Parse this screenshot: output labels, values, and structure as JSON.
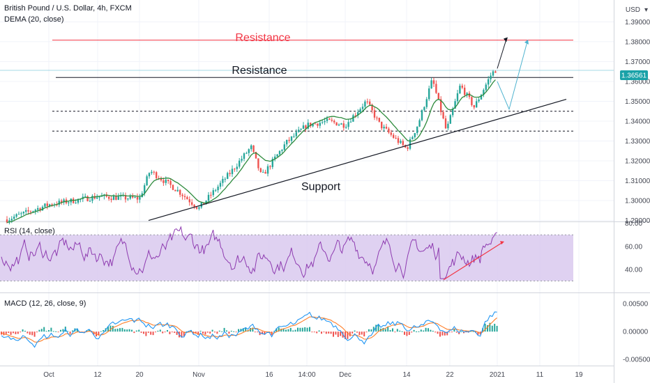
{
  "header": {
    "symbol_line": "British Pound / U.S. Dollar, 4h, FXCM",
    "dema_line": "DEMA (20, close)",
    "rsi_line": "RSI (14, close)",
    "macd_line": "MACD (12, 26, close, 9)",
    "currency": "USD"
  },
  "price_badge": "1.36561",
  "colors": {
    "up": "#26a69a",
    "down": "#ef5350",
    "dema": "#2e8b3d",
    "resistance_top": "#f23645",
    "rsi_line": "#8e3bb0",
    "rsi_band": "#d9c9ef",
    "macd_line": "#2196f3",
    "signal_line": "#ff7f2a",
    "projection": "#4fb3cf"
  },
  "chart_data": [
    {
      "type": "candlestick",
      "series": [
        {
          "name": "British Pound / U.S. Dollar, 4h, FXCM"
        },
        {
          "name": "DEMA (20, close)"
        }
      ],
      "x_ticks": [
        "Oct",
        "12",
        "20",
        "Nov",
        "16",
        "14:00",
        "Dec",
        "14",
        "22",
        "2021",
        "11",
        "19"
      ],
      "y_ticks": [
        "1.39000",
        "1.38000",
        "1.37000",
        "1.36000",
        "1.35000",
        "1.34000",
        "1.33000",
        "1.32000",
        "1.31000",
        "1.30000",
        "1.29000"
      ],
      "ylim": [
        1.2895,
        1.3975
      ],
      "close_path": [
        [
          "Oct",
          1.2905
        ],
        [
          "12",
          1.302
        ],
        [
          "20",
          1.301
        ],
        [
          "Nov",
          1.296
        ],
        [
          "16",
          1.315
        ],
        [
          "14:00",
          1.338
        ],
        [
          "Dec",
          1.34
        ],
        [
          "14",
          1.327
        ],
        [
          "22",
          1.333
        ],
        [
          "2021",
          1.3665
        ]
      ],
      "annotations": {
        "resistance_top_label": "Resistance",
        "resistance_top_level": 1.3808,
        "resistance_label": "Resistance",
        "resistance_level": 1.362,
        "support_label": "Support",
        "dashed_levels": [
          1.345,
          1.335
        ]
      }
    },
    {
      "type": "line",
      "title": "RSI (14, close)",
      "y_ticks": [
        "80.00",
        "60.00",
        "40.00"
      ],
      "ylim": [
        20,
        81
      ],
      "band": [
        30,
        70
      ]
    },
    {
      "type": "line",
      "title": "MACD (12, 26, close, 9)",
      "series": [
        {
          "name": "MACD"
        },
        {
          "name": "Signal"
        }
      ],
      "y_ticks": [
        "0.00500",
        "0.00000",
        "-0.00500"
      ],
      "ylim": [
        -0.0061,
        0.0069
      ]
    }
  ]
}
